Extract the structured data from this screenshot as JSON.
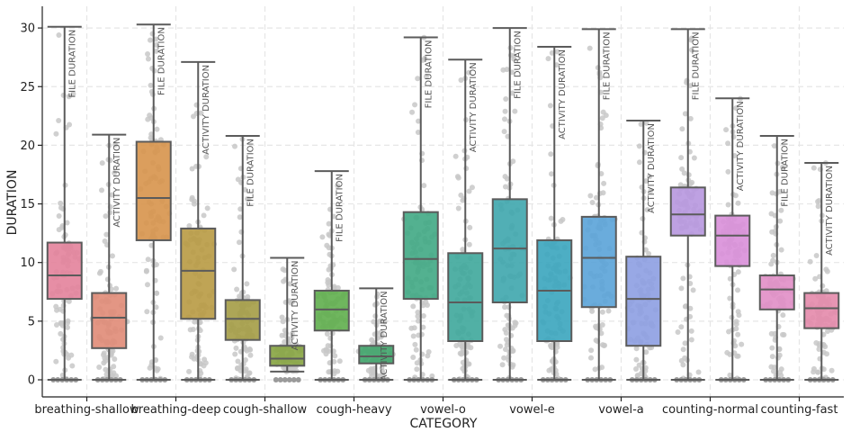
{
  "chart_data": {
    "type": "box",
    "xlabel": "CATEGORY",
    "ylabel": "DURATION",
    "ylim": [
      -1.5,
      31.8
    ],
    "yticks": [
      0,
      5,
      10,
      15,
      20,
      25,
      30
    ],
    "categories": [
      "breathing-shallow",
      "breathing-deep",
      "cough-shallow",
      "cough-heavy",
      "vowel-o",
      "vowel-e",
      "vowel-a",
      "counting-normal",
      "counting-fast"
    ],
    "series_names": [
      "FILE DURATION",
      "ACTIVITY DURATION"
    ],
    "grid": true,
    "boxes": [
      {
        "category": "breathing-shallow",
        "series": "FILE DURATION",
        "label": "FILE DURATION",
        "color": "#e3829b",
        "min": 0,
        "q1": 6.9,
        "median": 8.9,
        "q3": 11.7,
        "max": 30.1
      },
      {
        "category": "breathing-shallow",
        "series": "ACTIVITY DURATION",
        "label": "ACTIVITY DURATION",
        "color": "#e08b77",
        "min": 0,
        "q1": 2.7,
        "median": 5.3,
        "q3": 7.4,
        "max": 20.9
      },
      {
        "category": "breathing-deep",
        "series": "FILE DURATION",
        "label": "FILE DURATION",
        "color": "#d7944b",
        "min": 0,
        "q1": 11.9,
        "median": 15.5,
        "q3": 20.3,
        "max": 30.3
      },
      {
        "category": "breathing-deep",
        "series": "ACTIVITY DURATION",
        "label": "ACTIVITY DURATION",
        "color": "#b89a42",
        "min": 0,
        "q1": 5.2,
        "median": 9.3,
        "q3": 12.9,
        "max": 27.1
      },
      {
        "category": "cough-shallow",
        "series": "FILE DURATION",
        "label": "FILE DURATION",
        "color": "#a49c45",
        "min": 0,
        "q1": 3.4,
        "median": 5.2,
        "q3": 6.8,
        "max": 20.8
      },
      {
        "category": "cough-shallow",
        "series": "ACTIVITY DURATION",
        "label": "ACTIVITY DURATION",
        "color": "#86a440",
        "min": 0.7,
        "q1": 1.2,
        "median": 1.8,
        "q3": 2.9,
        "max": 10.4
      },
      {
        "category": "cough-heavy",
        "series": "FILE DURATION",
        "label": "FILE DURATION",
        "color": "#5fae4c",
        "min": 0,
        "q1": 4.2,
        "median": 6.0,
        "q3": 7.6,
        "max": 17.8
      },
      {
        "category": "cough-heavy",
        "series": "ACTIVITY DURATION",
        "label": "ACTIVITY DURATION",
        "color": "#3fa46a",
        "min": 0,
        "q1": 1.4,
        "median": 2.0,
        "q3": 2.9,
        "max": 7.8
      },
      {
        "category": "vowel-o",
        "series": "FILE DURATION",
        "label": "FILE DURATION",
        "color": "#40a884",
        "min": 0,
        "q1": 6.9,
        "median": 10.3,
        "q3": 14.3,
        "max": 29.2
      },
      {
        "category": "vowel-o",
        "series": "ACTIVITY DURATION",
        "label": "ACTIVITY DURATION",
        "color": "#3ea79b",
        "min": 0,
        "q1": 3.3,
        "median": 6.6,
        "q3": 10.8,
        "max": 27.3
      },
      {
        "category": "vowel-e",
        "series": "FILE DURATION",
        "label": "FILE DURATION",
        "color": "#3ea6ad",
        "min": 0,
        "q1": 6.6,
        "median": 11.2,
        "q3": 15.4,
        "max": 30.0
      },
      {
        "category": "vowel-e",
        "series": "ACTIVITY DURATION",
        "label": "ACTIVITY DURATION",
        "color": "#3aa5be",
        "min": 0,
        "q1": 3.3,
        "median": 7.6,
        "q3": 11.9,
        "max": 28.4
      },
      {
        "category": "vowel-a",
        "series": "FILE DURATION",
        "label": "FILE DURATION",
        "color": "#5aa3d8",
        "min": 0,
        "q1": 6.2,
        "median": 10.4,
        "q3": 13.9,
        "max": 29.9
      },
      {
        "category": "vowel-a",
        "series": "ACTIVITY DURATION",
        "label": "ACTIVITY DURATION",
        "color": "#8d9fe2",
        "min": 0,
        "q1": 2.9,
        "median": 6.9,
        "q3": 10.5,
        "max": 22.1
      },
      {
        "category": "counting-normal",
        "series": "FILE DURATION",
        "label": "FILE DURATION",
        "color": "#b797df",
        "min": 0,
        "q1": 12.3,
        "median": 14.1,
        "q3": 16.4,
        "max": 29.9
      },
      {
        "category": "counting-normal",
        "series": "ACTIVITY DURATION",
        "label": "ACTIVITY DURATION",
        "color": "#d98fd9",
        "min": 0,
        "q1": 9.7,
        "median": 12.3,
        "q3": 14.0,
        "max": 24.0
      },
      {
        "category": "counting-fast",
        "series": "FILE DURATION",
        "label": "FILE DURATION",
        "color": "#e18ec7",
        "min": 0,
        "q1": 6.0,
        "median": 7.7,
        "q3": 8.9,
        "max": 20.8
      },
      {
        "category": "counting-fast",
        "series": "ACTIVITY DURATION",
        "label": "ACTIVITY DURATION",
        "color": "#e489ab",
        "min": 0,
        "q1": 4.4,
        "median": 6.1,
        "q3": 7.4,
        "max": 18.5
      }
    ]
  },
  "colors": {
    "whisker": "#5b5b5b",
    "swarm_point": "#c8c8c8",
    "grid": "#e6e6e6",
    "axis": "#222222",
    "annotation_text": "#555555"
  }
}
